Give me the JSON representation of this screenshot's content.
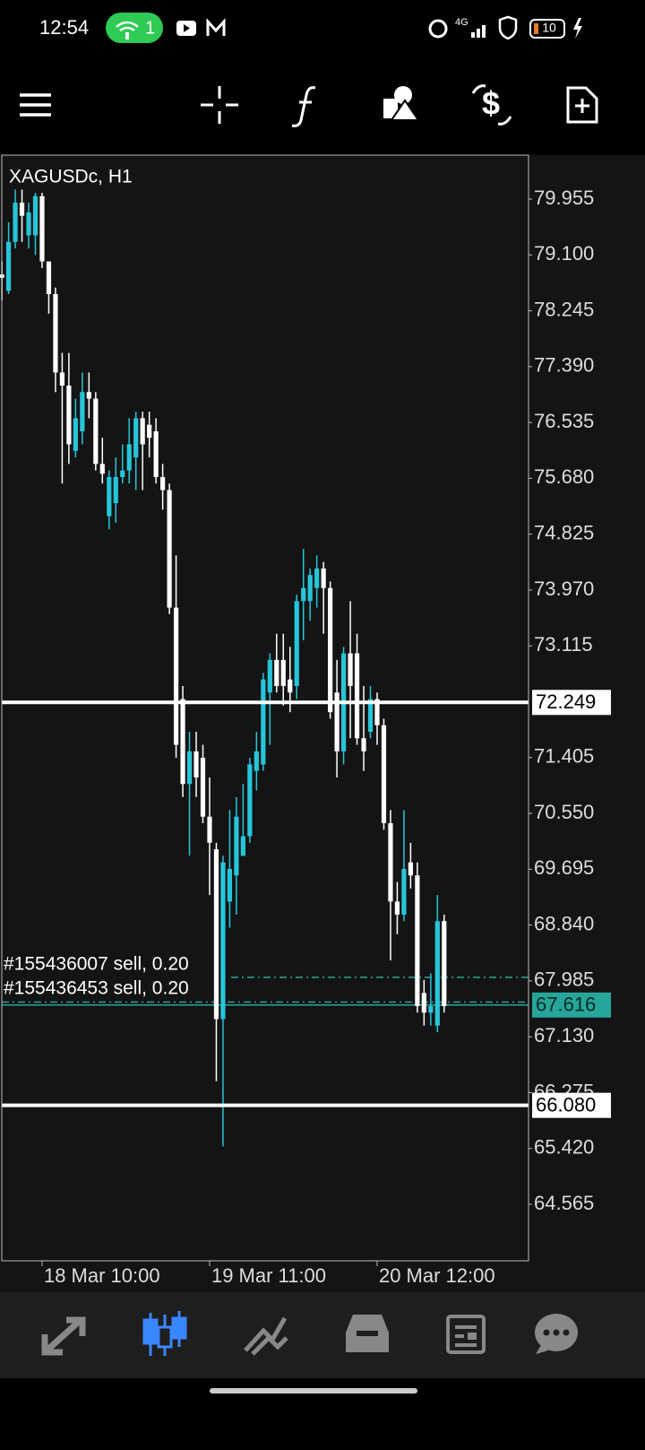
{
  "status_bar": {
    "time": "12:54",
    "hotspot_count": "1",
    "network": "4G",
    "battery": "10"
  },
  "chart_data": {
    "type": "candlestick",
    "title": "XAGUSDc, H1",
    "categories": [
      null,
      null,
      null,
      null,
      null,
      null,
      "18 Mar 10:00",
      null,
      null,
      null,
      null,
      null,
      null,
      null,
      null,
      null,
      null,
      null,
      null,
      null,
      null,
      null,
      null,
      null,
      null,
      null,
      null,
      null,
      null,
      null,
      null,
      "19 Mar 11:00",
      null,
      null,
      null,
      null,
      null,
      null,
      null,
      null,
      null,
      null,
      null,
      null,
      null,
      null,
      null,
      null,
      null,
      null,
      null,
      null,
      null,
      null,
      null,
      null,
      "20 Mar 12:00",
      null,
      null,
      null,
      null,
      null,
      null,
      null,
      null,
      null,
      null
    ],
    "open": [
      78.8,
      78.55,
      79.3,
      79.9,
      79.4,
      79.4,
      80.0,
      79.0,
      78.5,
      77.3,
      77.1,
      76.1,
      76.4,
      77.0,
      76.9,
      75.9,
      75.1,
      75.3,
      75.7,
      75.8,
      76.0,
      76.6,
      76.5,
      76.4,
      75.7,
      75.5,
      73.7,
      72.3,
      71.0,
      71.5,
      71.4,
      70.5,
      70.0,
      67.4,
      69.2,
      69.6,
      69.9,
      70.2,
      71.2,
      71.3,
      72.4,
      72.9,
      72.9,
      72.6,
      72.5,
      73.8,
      73.8,
      74.0,
      74.3,
      74.0,
      72.4,
      71.5,
      73.0,
      73.0,
      71.7,
      71.8,
      72.3,
      71.9,
      70.4,
      69.2,
      69.0,
      69.8,
      69.6,
      67.8,
      67.5,
      67.3,
      68.9
    ],
    "high": [
      79.0,
      79.6,
      80.1,
      80.1,
      79.9,
      80.05,
      80.05,
      79.0,
      78.6,
      77.6,
      77.6,
      76.9,
      77.3,
      77.3,
      77.0,
      76.3,
      75.8,
      76.0,
      76.2,
      76.6,
      76.7,
      76.7,
      76.7,
      76.6,
      75.9,
      75.6,
      74.5,
      72.5,
      71.8,
      71.8,
      71.6,
      71.1,
      70.1,
      69.9,
      70.6,
      70.8,
      71.0,
      71.4,
      71.8,
      72.7,
      73.0,
      73.3,
      73.3,
      73.1,
      73.9,
      74.6,
      74.3,
      74.5,
      74.4,
      74.1,
      72.9,
      73.1,
      73.8,
      73.3,
      72.5,
      72.5,
      72.4,
      72.0,
      70.6,
      69.5,
      70.6,
      70.1,
      69.8,
      68.0,
      68.1,
      69.3,
      69.0
    ],
    "low": [
      78.4,
      78.5,
      79.2,
      79.3,
      79.2,
      79.1,
      78.9,
      78.2,
      77.0,
      75.6,
      75.9,
      76.0,
      76.2,
      76.6,
      75.8,
      75.6,
      74.9,
      75.0,
      75.6,
      75.6,
      75.5,
      75.5,
      76.0,
      75.6,
      75.2,
      73.6,
      71.4,
      70.8,
      69.9,
      70.8,
      70.4,
      69.3,
      66.45,
      65.45,
      68.8,
      69.0,
      69.9,
      70.1,
      70.9,
      71.2,
      71.6,
      72.4,
      72.2,
      72.1,
      72.3,
      73.2,
      73.5,
      73.7,
      73.3,
      72.0,
      71.1,
      71.3,
      71.7,
      71.6,
      71.2,
      71.7,
      71.6,
      70.3,
      68.3,
      68.7,
      68.9,
      69.4,
      67.5,
      67.3,
      67.3,
      67.2,
      67.5
    ],
    "close": [
      78.75,
      79.3,
      79.9,
      79.7,
      79.75,
      80.0,
      79.0,
      78.5,
      77.3,
      77.1,
      76.2,
      76.6,
      77.0,
      76.9,
      75.9,
      75.75,
      75.7,
      75.7,
      75.8,
      76.2,
      76.6,
      76.2,
      76.3,
      75.7,
      75.5,
      73.7,
      71.6,
      71.0,
      71.5,
      71.1,
      70.5,
      70.1,
      67.4,
      69.8,
      69.7,
      70.5,
      70.2,
      71.3,
      71.5,
      72.6,
      72.9,
      72.5,
      72.5,
      72.4,
      73.8,
      74.0,
      74.2,
      74.3,
      74.0,
      72.1,
      71.5,
      73.0,
      72.5,
      71.7,
      71.5,
      72.3,
      71.9,
      70.4,
      69.2,
      69.0,
      69.7,
      69.6,
      67.6,
      67.5,
      67.6,
      68.9,
      67.6
    ],
    "up_color": "#26c6da",
    "down_color": "#ffffff",
    "ylim": [
      63.7,
      80.628
    ],
    "yticks": [
      79.955,
      {
        "value": 79.1,
        "label": "79.100"
      },
      78.245,
      {
        "value": 77.39,
        "label": "77.390"
      },
      76.535,
      {
        "value": 75.68,
        "label": "75.680"
      },
      74.825,
      {
        "value": 73.97,
        "label": "73.970"
      },
      73.115,
      71.405,
      {
        "value": 70.55,
        "label": "70.550"
      },
      69.695,
      {
        "value": 68.84,
        "label": "68.840"
      },
      67.985,
      {
        "value": 67.13,
        "label": "67.130"
      },
      66.275,
      {
        "value": 65.42,
        "label": "65.420"
      },
      64.565
    ],
    "levels": [
      72.249,
      66.08
    ],
    "level_labels": [
      "72.249",
      "66.080"
    ],
    "level_color": "#ffffff",
    "bid": 67.616,
    "bid_color": "#26a69a",
    "orders": [
      {
        "label": "#155436007 sell, 0.20",
        "price": 68.04
      },
      {
        "label": "#155436453 sell, 0.20",
        "price": 67.66
      }
    ]
  }
}
